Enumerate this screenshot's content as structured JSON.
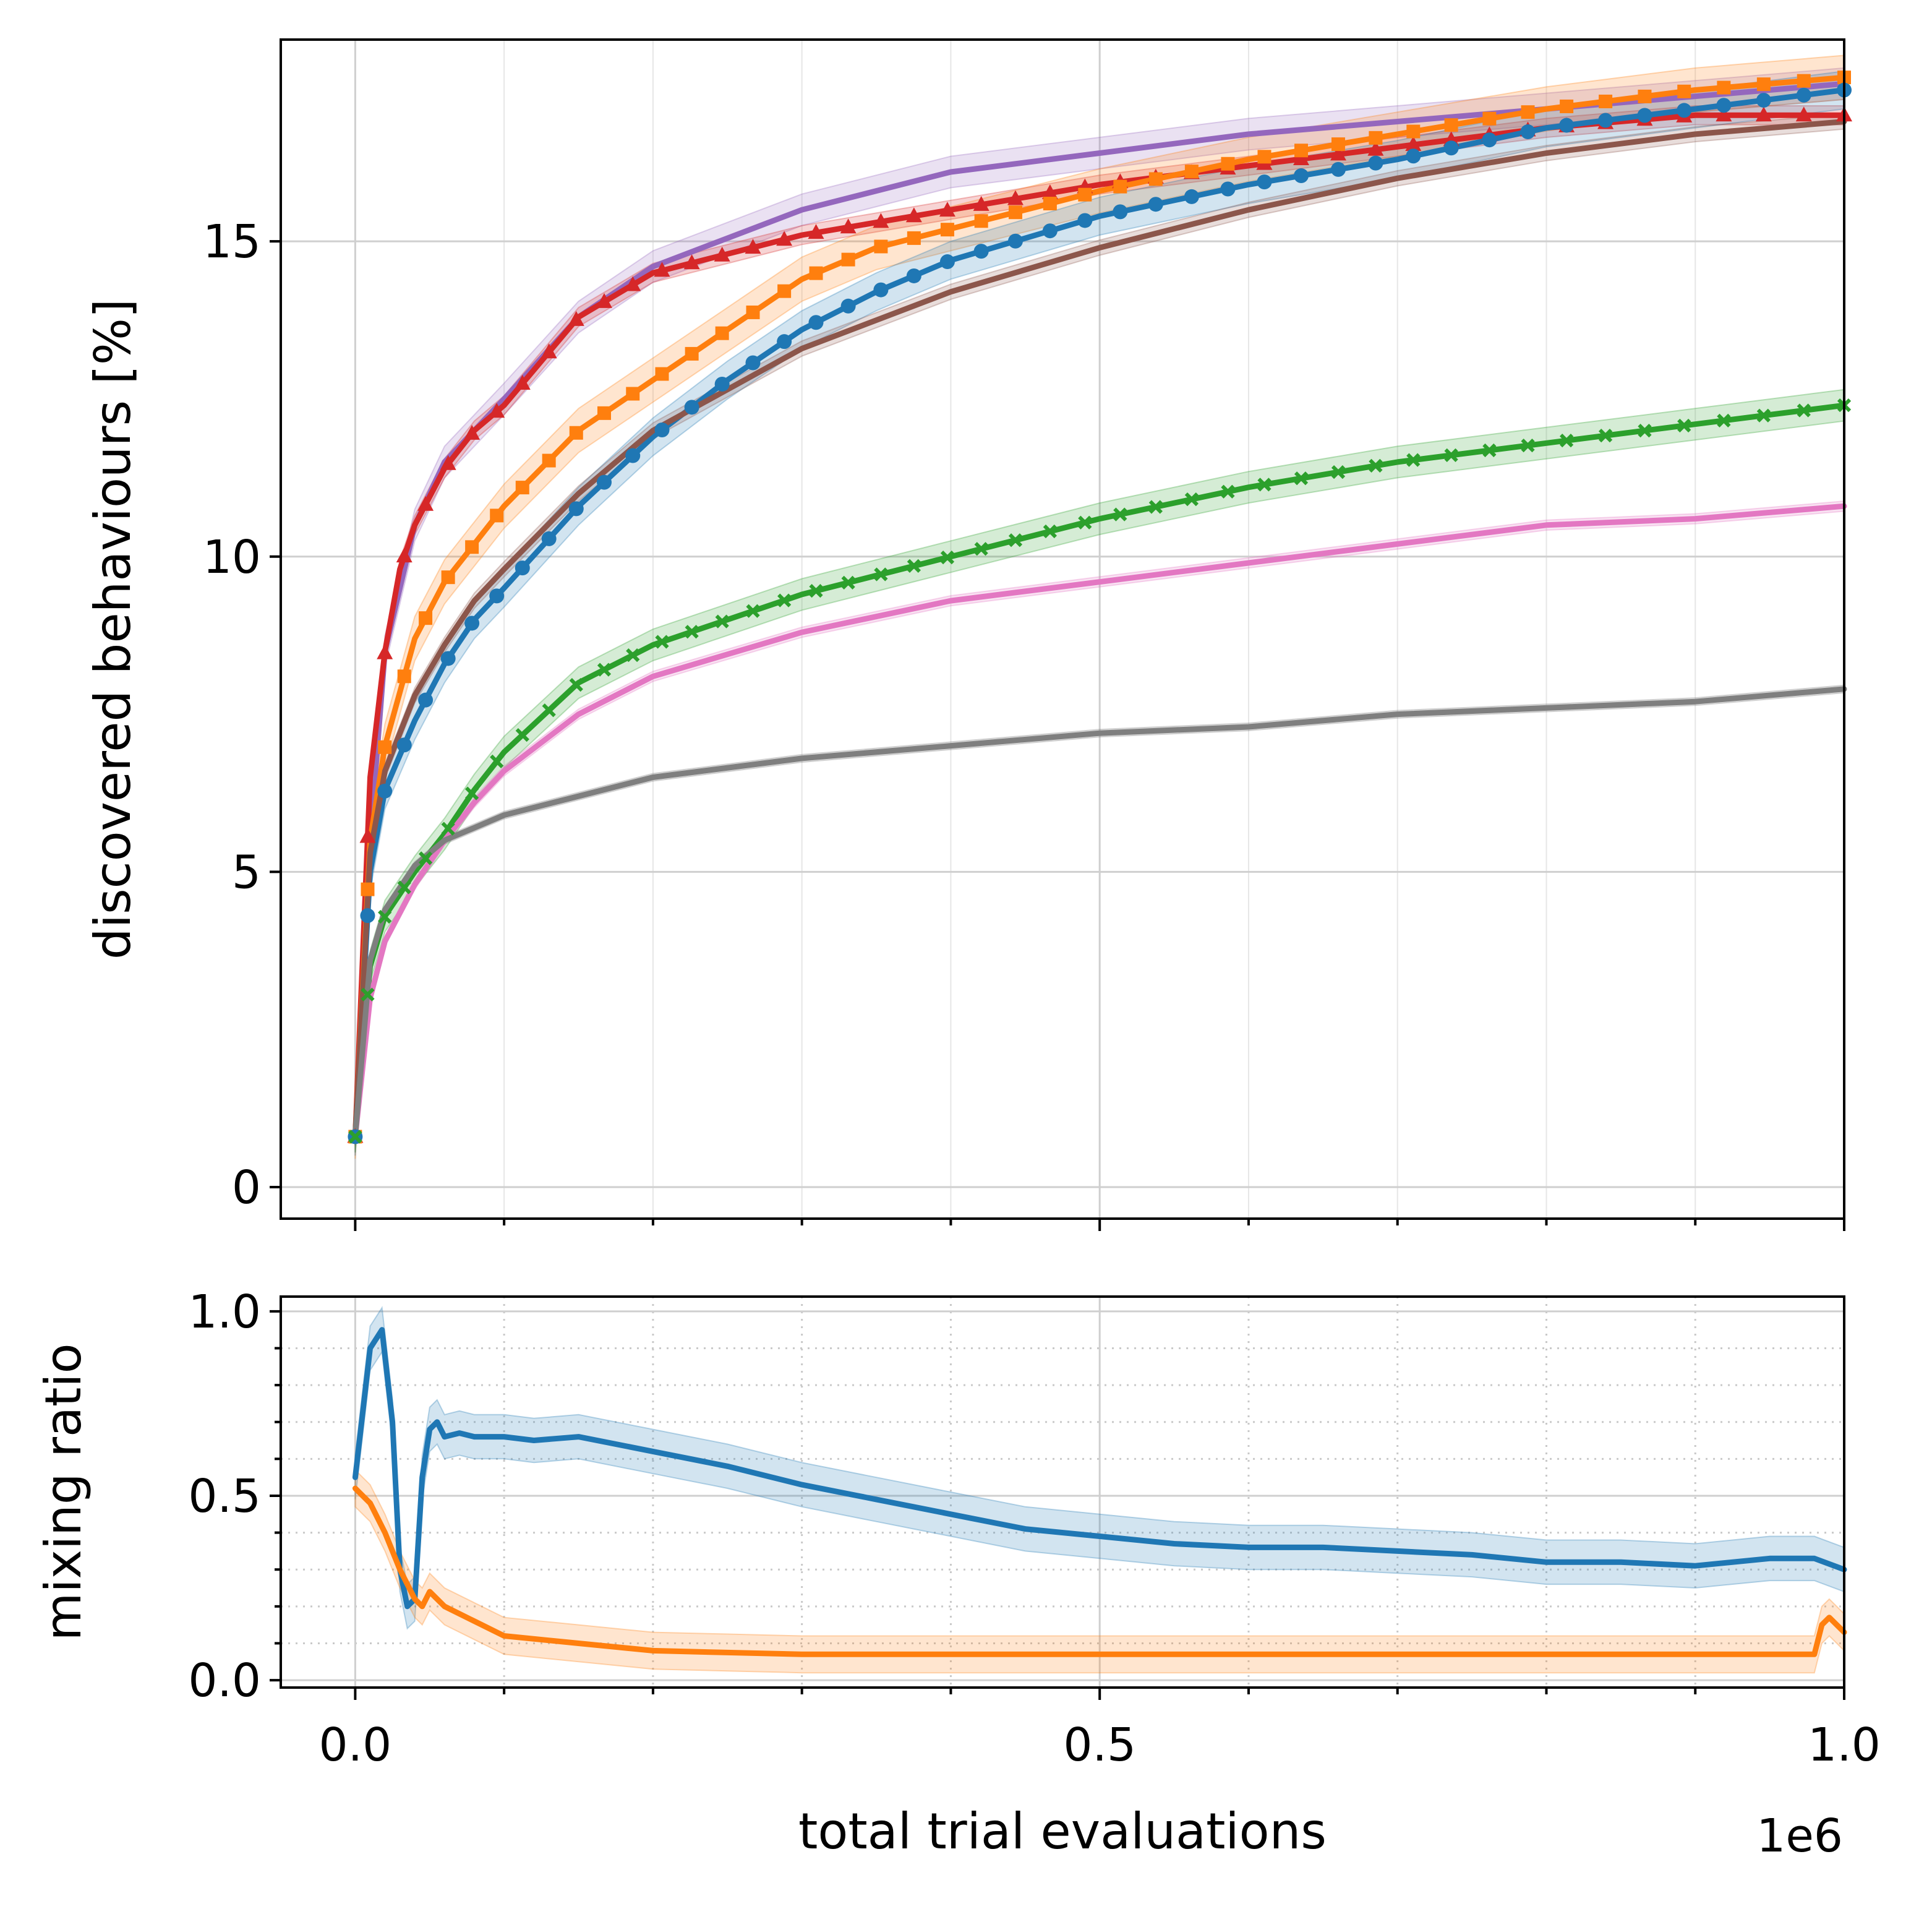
{
  "chart_data": [
    {
      "type": "line",
      "panel": "top",
      "xlabel": "",
      "ylabel": "discovered behaviours [%]",
      "xlim": [
        -50000,
        1000000
      ],
      "ylim": [
        -0.5,
        18.2
      ],
      "yticks": [
        0,
        5,
        10,
        15
      ],
      "ytick_labels": [
        "0",
        "5",
        "10",
        "15"
      ],
      "xticks_major": [
        0,
        500000,
        1000000
      ],
      "xticks_minor": [
        100000,
        200000,
        300000,
        400000,
        600000,
        700000,
        800000,
        900000
      ],
      "grid": true,
      "series": [
        {
          "color": "#9467bd",
          "marker": "none",
          "x": [
            0,
            10000,
            20000,
            40000,
            60000,
            80000,
            100000,
            150000,
            200000,
            300000,
            400000,
            500000,
            600000,
            700000,
            800000,
            900000,
            1000000
          ],
          "y": [
            0.8,
            5.5,
            8.5,
            10.5,
            11.5,
            12.0,
            12.5,
            13.8,
            14.6,
            15.5,
            16.1,
            16.4,
            16.7,
            16.9,
            17.1,
            17.3,
            17.5
          ],
          "band": 0.25
        },
        {
          "color": "#d62728",
          "marker": "triangle",
          "x": [
            0,
            10000,
            20000,
            30000,
            40000,
            60000,
            80000,
            100000,
            150000,
            200000,
            300000,
            400000,
            500000,
            600000,
            700000,
            800000,
            900000,
            1000000
          ],
          "y": [
            0.8,
            6.5,
            8.5,
            9.8,
            10.5,
            11.4,
            12.0,
            12.4,
            13.8,
            14.5,
            15.1,
            15.5,
            15.9,
            16.2,
            16.5,
            16.8,
            17.0,
            17.0
          ],
          "band": 0.15
        },
        {
          "color": "#ff7f0e",
          "marker": "square",
          "x": [
            0,
            10000,
            20000,
            40000,
            60000,
            80000,
            100000,
            150000,
            200000,
            250000,
            300000,
            350000,
            400000,
            500000,
            600000,
            700000,
            800000,
            900000,
            1000000
          ],
          "y": [
            0.8,
            5.5,
            7.0,
            8.7,
            9.6,
            10.2,
            10.8,
            12.0,
            12.8,
            13.6,
            14.4,
            14.9,
            15.2,
            15.8,
            16.3,
            16.7,
            17.1,
            17.4,
            17.6
          ],
          "band": 0.35
        },
        {
          "color": "#1f77b4",
          "marker": "circle",
          "x": [
            0,
            10000,
            20000,
            40000,
            60000,
            80000,
            100000,
            150000,
            200000,
            250000,
            300000,
            350000,
            400000,
            500000,
            600000,
            700000,
            800000,
            900000,
            1000000
          ],
          "y": [
            0.8,
            5.0,
            6.3,
            7.4,
            8.3,
            9.0,
            9.5,
            10.8,
            11.9,
            12.8,
            13.6,
            14.2,
            14.7,
            15.4,
            15.9,
            16.3,
            16.8,
            17.1,
            17.4
          ],
          "band": 0.3
        },
        {
          "color": "#8c564b",
          "marker": "none",
          "x": [
            0,
            10000,
            20000,
            40000,
            60000,
            80000,
            100000,
            150000,
            200000,
            300000,
            400000,
            500000,
            600000,
            700000,
            800000,
            900000,
            1000000
          ],
          "y": [
            0.8,
            5.3,
            6.6,
            7.8,
            8.6,
            9.3,
            9.8,
            11.0,
            12.0,
            13.3,
            14.2,
            14.9,
            15.5,
            16.0,
            16.4,
            16.7,
            16.9
          ],
          "band": 0.12
        },
        {
          "color": "#2ca02c",
          "marker": "x",
          "x": [
            0,
            10000,
            20000,
            40000,
            60000,
            80000,
            100000,
            150000,
            200000,
            300000,
            400000,
            500000,
            600000,
            700000,
            800000,
            900000,
            1000000
          ],
          "y": [
            0.8,
            3.5,
            4.3,
            5.0,
            5.6,
            6.3,
            6.9,
            8.0,
            8.6,
            9.4,
            10.0,
            10.6,
            11.1,
            11.5,
            11.8,
            12.1,
            12.4
          ],
          "band": 0.25
        },
        {
          "color": "#e377c2",
          "marker": "none",
          "x": [
            0,
            10000,
            20000,
            40000,
            60000,
            80000,
            100000,
            150000,
            200000,
            300000,
            400000,
            500000,
            600000,
            700000,
            800000,
            900000,
            1000000
          ],
          "y": [
            0.8,
            3.0,
            3.9,
            4.8,
            5.5,
            6.1,
            6.6,
            7.5,
            8.1,
            8.8,
            9.3,
            9.6,
            9.9,
            10.2,
            10.5,
            10.6,
            10.8
          ],
          "band": 0.08
        },
        {
          "color": "#7f7f7f",
          "marker": "none",
          "x": [
            0,
            10000,
            20000,
            40000,
            60000,
            80000,
            100000,
            150000,
            200000,
            300000,
            400000,
            500000,
            600000,
            700000,
            800000,
            900000,
            1000000
          ],
          "y": [
            0.8,
            3.6,
            4.4,
            5.1,
            5.5,
            5.7,
            5.9,
            6.2,
            6.5,
            6.8,
            7.0,
            7.2,
            7.3,
            7.5,
            7.6,
            7.7,
            7.9
          ],
          "band": 0.06
        }
      ]
    },
    {
      "type": "line",
      "panel": "bottom",
      "xlabel": "total trial evaluations",
      "ylabel": "mixing ratio",
      "x_offset_label": "1e6",
      "xlim": [
        -50000,
        1000000
      ],
      "ylim": [
        -0.02,
        1.04
      ],
      "yticks": [
        0.0,
        0.5,
        1.0
      ],
      "ytick_labels": [
        "0.0",
        "0.5",
        "1.0"
      ],
      "xticks_major": [
        0,
        500000,
        1000000
      ],
      "xtick_labels": [
        "0.0",
        "0.5",
        "1.0"
      ],
      "xticks_minor": [
        100000,
        200000,
        300000,
        400000,
        600000,
        700000,
        800000,
        900000
      ],
      "yticks_minor": [
        0.1,
        0.2,
        0.3,
        0.4,
        0.6,
        0.7,
        0.8,
        0.9
      ],
      "grid": true,
      "series": [
        {
          "color": "#1f77b4",
          "x": [
            0,
            10000,
            18000,
            25000,
            30000,
            35000,
            40000,
            45000,
            50000,
            55000,
            60000,
            70000,
            80000,
            100000,
            120000,
            150000,
            200000,
            250000,
            300000,
            350000,
            400000,
            450000,
            500000,
            550000,
            600000,
            650000,
            700000,
            750000,
            800000,
            850000,
            900000,
            950000,
            980000,
            1000000
          ],
          "y": [
            0.55,
            0.9,
            0.95,
            0.7,
            0.3,
            0.2,
            0.22,
            0.55,
            0.68,
            0.7,
            0.66,
            0.67,
            0.66,
            0.66,
            0.65,
            0.66,
            0.62,
            0.58,
            0.53,
            0.49,
            0.45,
            0.41,
            0.39,
            0.37,
            0.36,
            0.36,
            0.35,
            0.34,
            0.32,
            0.32,
            0.31,
            0.33,
            0.33,
            0.3
          ],
          "band": 0.06
        },
        {
          "color": "#ff7f0e",
          "x": [
            0,
            10000,
            20000,
            30000,
            40000,
            45000,
            50000,
            60000,
            80000,
            100000,
            150000,
            200000,
            250000,
            300000,
            400000,
            500000,
            600000,
            700000,
            800000,
            900000,
            980000,
            985000,
            990000,
            1000000
          ],
          "y": [
            0.52,
            0.48,
            0.4,
            0.3,
            0.22,
            0.2,
            0.24,
            0.2,
            0.16,
            0.12,
            0.1,
            0.08,
            0.075,
            0.07,
            0.07,
            0.07,
            0.07,
            0.07,
            0.07,
            0.07,
            0.07,
            0.15,
            0.17,
            0.13
          ],
          "band": 0.05
        }
      ]
    }
  ]
}
